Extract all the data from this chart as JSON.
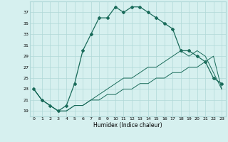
{
  "title": "",
  "xlabel": "Humidex (Indice chaleur)",
  "ylabel": "",
  "bg_color": "#d6f0ef",
  "grid_color": "#b0d8d8",
  "line_color": "#1a6b5a",
  "x": [
    0,
    1,
    2,
    3,
    4,
    5,
    6,
    7,
    8,
    9,
    10,
    11,
    12,
    13,
    14,
    15,
    16,
    17,
    18,
    19,
    20,
    21,
    22,
    23
  ],
  "y_main": [
    23,
    21,
    20,
    19,
    20,
    24,
    30,
    33,
    36,
    36,
    38,
    37,
    38,
    38,
    37,
    36,
    35,
    34,
    30,
    30,
    29,
    28,
    25,
    24
  ],
  "y_line2": [
    23,
    21,
    20,
    19,
    19,
    20,
    20,
    21,
    21,
    22,
    22,
    23,
    23,
    24,
    24,
    25,
    25,
    26,
    26,
    27,
    27,
    28,
    29,
    23
  ],
  "y_line3": [
    23,
    21,
    20,
    19,
    19,
    20,
    20,
    21,
    22,
    23,
    24,
    25,
    25,
    26,
    27,
    27,
    28,
    29,
    30,
    29,
    30,
    29,
    26,
    23
  ],
  "ylim": [
    18,
    39
  ],
  "xlim": [
    -0.5,
    23.5
  ],
  "yticks": [
    19,
    21,
    23,
    25,
    27,
    29,
    31,
    33,
    35,
    37
  ],
  "xticks": [
    0,
    1,
    2,
    3,
    4,
    5,
    6,
    7,
    8,
    9,
    10,
    11,
    12,
    13,
    14,
    15,
    16,
    17,
    18,
    19,
    20,
    21,
    22,
    23
  ]
}
